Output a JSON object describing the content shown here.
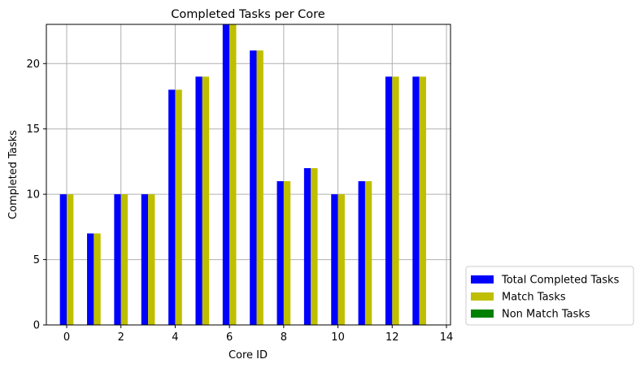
{
  "chart_data": {
    "type": "bar",
    "title": "Completed Tasks per Core",
    "xlabel": "Core ID",
    "ylabel": "Completed Tasks",
    "x": [
      0,
      1,
      2,
      3,
      4,
      5,
      6,
      7,
      8,
      9,
      10,
      11,
      12,
      13
    ],
    "xlim": [
      -0.75,
      14.15
    ],
    "ylim": [
      0,
      23
    ],
    "xticks": [
      0,
      2,
      4,
      6,
      8,
      10,
      12,
      14
    ],
    "yticks": [
      0,
      5,
      10,
      15,
      20
    ],
    "grid": true,
    "legend_position": "outside-bottom-right",
    "series": [
      {
        "name": "Total Completed Tasks",
        "color": "#0000ff",
        "values": [
          10,
          7,
          10,
          10,
          18,
          19,
          23,
          21,
          11,
          12,
          10,
          11,
          19,
          19
        ]
      },
      {
        "name": "Match Tasks",
        "color": "#bfbf00",
        "values": [
          10,
          7,
          10,
          10,
          18,
          19,
          23,
          21,
          11,
          12,
          10,
          11,
          19,
          19
        ]
      },
      {
        "name": "Non Match Tasks",
        "color": "#008000",
        "values": [
          0,
          0,
          0,
          0,
          0,
          0,
          0,
          0,
          0,
          0,
          0,
          0,
          0,
          0
        ]
      }
    ]
  }
}
